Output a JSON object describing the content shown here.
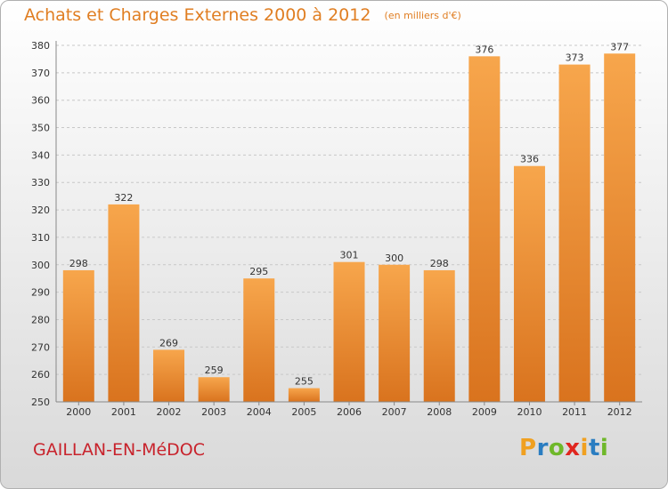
{
  "title": "Achats et Charges Externes 2000 à 2012",
  "unit": "(en milliers d'€)",
  "commune": "GAILLAN-EN-MéDOC",
  "logo": {
    "letters": [
      "P",
      "r",
      "o",
      "x",
      "i",
      "t",
      "i"
    ],
    "colors": [
      "#f0a020",
      "#2a7dc1",
      "#6fb82a",
      "#e0261f",
      "#f0a020",
      "#2a7dc1",
      "#6fb82a"
    ]
  },
  "colors": {
    "bar_top": "#f7a64c",
    "bar_bottom": "#d9731e",
    "title": "#e07e22",
    "commune": "#c8232c"
  },
  "chart_data": {
    "type": "bar",
    "categories": [
      "2000",
      "2001",
      "2002",
      "2003",
      "2004",
      "2005",
      "2006",
      "2007",
      "2008",
      "2009",
      "2010",
      "2011",
      "2012"
    ],
    "values": [
      298,
      322,
      269,
      259,
      295,
      255,
      301,
      300,
      298,
      376,
      336,
      373,
      377
    ],
    "ylim": [
      250,
      380
    ],
    "yticks": [
      250,
      260,
      270,
      280,
      290,
      300,
      310,
      320,
      330,
      340,
      350,
      360,
      370,
      380
    ],
    "grid": true
  }
}
